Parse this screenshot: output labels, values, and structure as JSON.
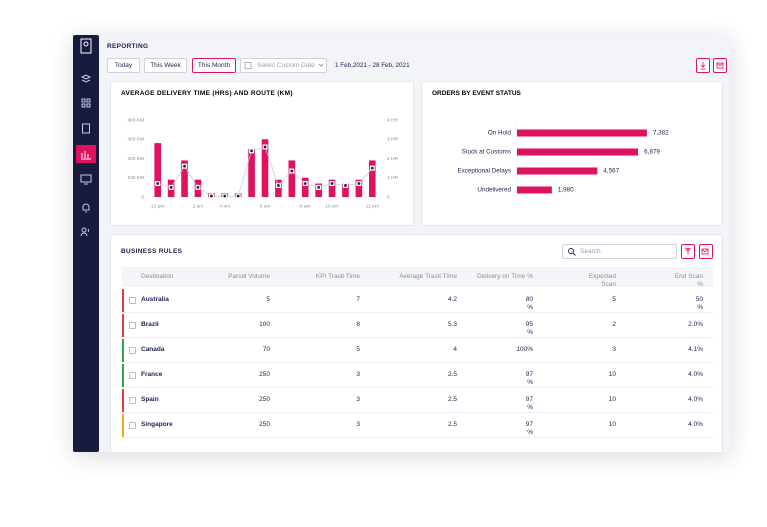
{
  "header": {
    "title": "REPORTING",
    "buttons": [
      "Today",
      "This Week",
      "This Month"
    ],
    "date_placeholder": "Select Custom Date",
    "date_range": "1 Feb,2021 - 28 Feb, 2021"
  },
  "chart_data": [
    {
      "type": "bar_line",
      "title": "AVERAGE DELIVERY TIME (HRS) AND ROUTE (KM)",
      "categories": [
        "12 pm",
        null,
        null,
        "2 am",
        null,
        "4 am",
        null,
        null,
        "6 am",
        null,
        null,
        "8 am",
        null,
        "10 am",
        null,
        null,
        "12 pm"
      ],
      "series": [
        {
          "color": "#e0115f",
          "values": [
            280,
            90,
            190,
            90,
            20,
            20,
            20,
            250,
            300,
            90,
            190,
            100,
            70,
            90,
            70,
            90,
            190
          ]
        },
        {
          "color": "#c4c7d4",
          "marker_color": "#1c2150",
          "axis": "y2",
          "values": [
            0.7,
            0.5,
            1.6,
            0.5,
            0.05,
            0.05,
            0.05,
            2.4,
            2.6,
            0.6,
            1.35,
            0.7,
            0.5,
            0.7,
            0.6,
            0.7,
            1.5
          ]
        }
      ],
      "ylim": [
        0,
        400
      ],
      "yticks": [
        0,
        {
          "value": 100,
          "label": "100 KM"
        },
        {
          "value": 200,
          "label": "200 KM"
        },
        {
          "value": 300,
          "label": "300 KM"
        },
        {
          "value": 400,
          "label": "400 KM"
        }
      ],
      "y2lim": [
        0,
        4
      ],
      "y2ticks": [
        0,
        {
          "value": 1,
          "label": "1 HR"
        },
        {
          "value": 2,
          "label": "2 HR"
        },
        {
          "value": 3,
          "label": "3 HR"
        },
        {
          "value": 4,
          "label": "4 HR"
        }
      ]
    },
    {
      "type": "hbar",
      "title": "ORDERS BY EVENT STATUS",
      "categories": [
        "On Hold",
        "Stuck at Customs",
        "Exceptional Delays",
        "Undelivered"
      ],
      "values": [
        7382,
        6879,
        4567,
        1980
      ],
      "value_labels": [
        "7,382",
        "6,879",
        "4,567",
        "1,980"
      ],
      "color": "#e0115f",
      "xlim": [
        0,
        10000
      ]
    }
  ],
  "search_placeholder": "Search",
  "table": {
    "title": "BUSINESS RULES",
    "columns": [
      "Destination",
      "Parcel Volume",
      "KPI Trasit Time",
      "Average Trasit Time",
      "Delivery on Time %",
      "Expected Scan",
      "End Scan %"
    ],
    "rows": [
      [
        "Australia",
        "5",
        "7",
        "4.2",
        "80 %",
        "5",
        "50 %"
      ],
      [
        "Brazil",
        "100",
        "8",
        "5.3",
        "95 %",
        "2",
        "2.0%"
      ],
      [
        "Canada",
        "70",
        "5",
        "4",
        "100%",
        "3",
        "4.1%"
      ],
      [
        "France",
        "250",
        "3",
        "2.5",
        "97 %",
        "10",
        "4.0%"
      ],
      [
        "Spain",
        "250",
        "3",
        "2.5",
        "97 %",
        "10",
        "4.0%"
      ],
      [
        "Singapore",
        "250",
        "3",
        "2.5",
        "97 %",
        "10",
        "4.0%"
      ]
    ],
    "row_colors": [
      "#e53946",
      "#e53946",
      "#2ea44f",
      "#2ea44f",
      "#e53946",
      "#f0a81c"
    ]
  }
}
